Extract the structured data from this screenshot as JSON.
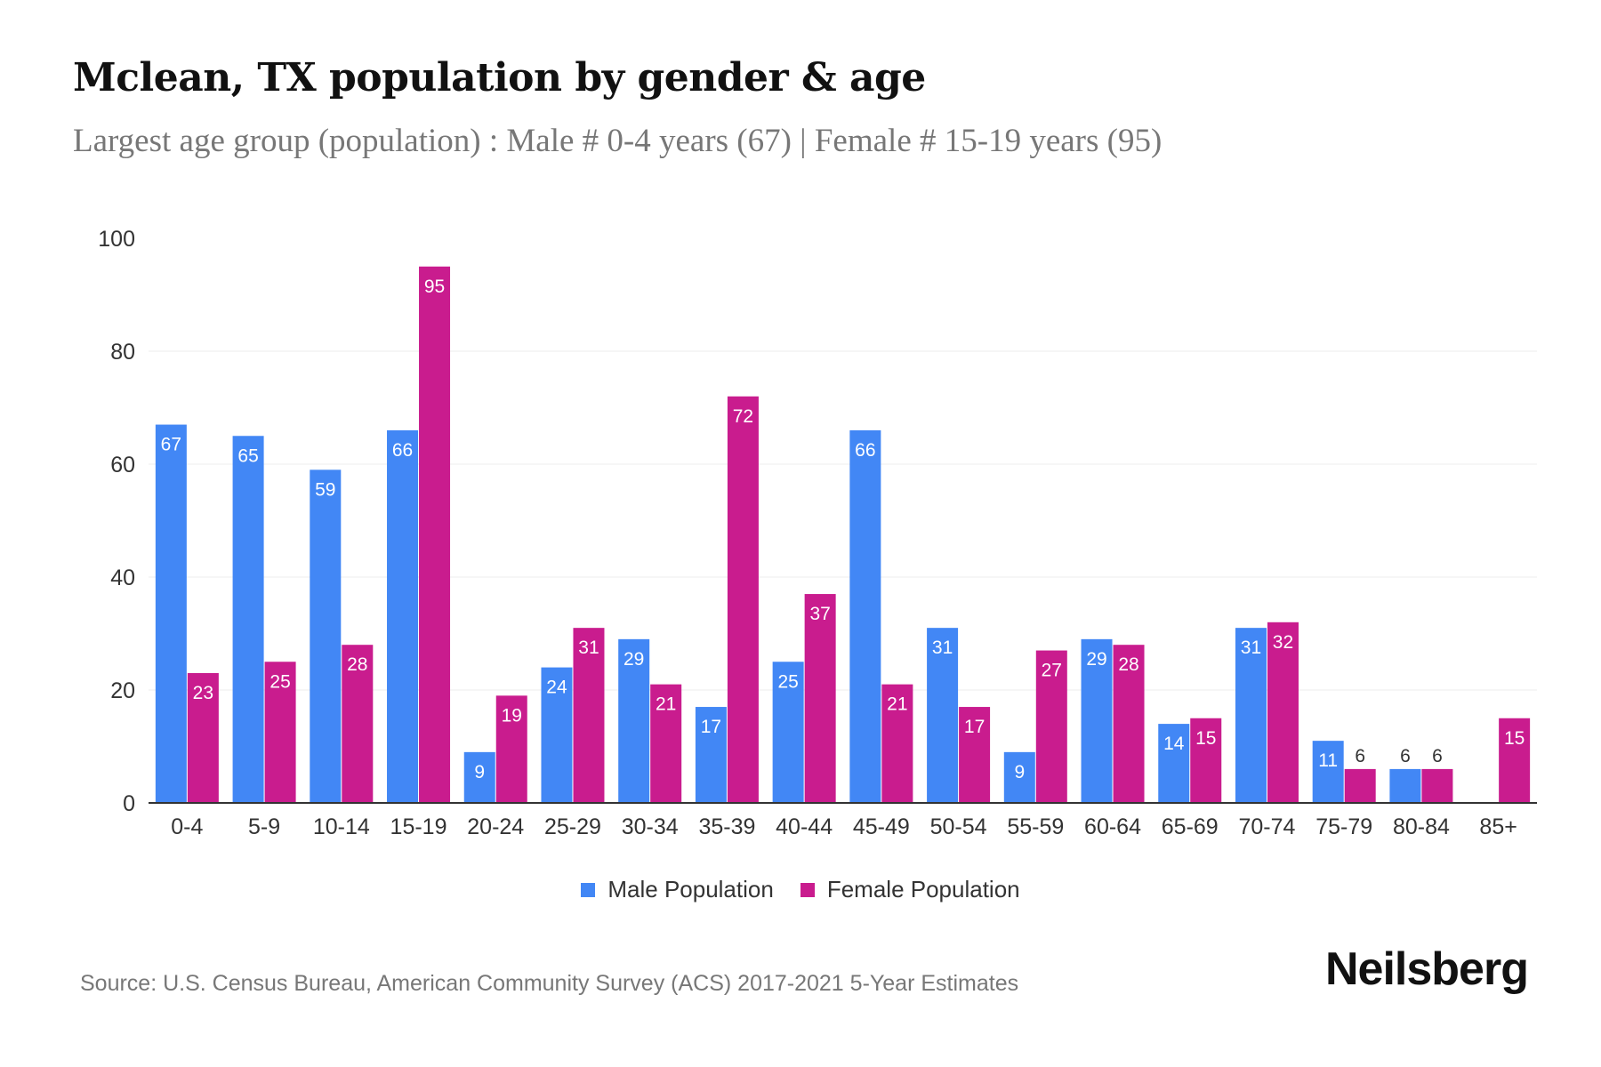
{
  "title": "Mclean, TX population by gender & age",
  "subtitle": "Largest age group (population) : Male # 0-4 years (67) | Female # 15-19 years (95)",
  "source": "Source: U.S. Census Bureau, American Community Survey (ACS) 2017-2021 5-Year Estimates",
  "logo": "Neilsberg",
  "chart_data": {
    "type": "bar",
    "categories": [
      "0-4",
      "5-9",
      "10-14",
      "15-19",
      "20-24",
      "25-29",
      "30-34",
      "35-39",
      "40-44",
      "45-49",
      "50-54",
      "55-59",
      "60-64",
      "65-69",
      "70-74",
      "75-79",
      "80-84",
      "85+"
    ],
    "series": [
      {
        "name": "Male Population",
        "color": "#4287f5",
        "values": [
          67,
          65,
          59,
          66,
          9,
          24,
          29,
          17,
          25,
          66,
          31,
          9,
          29,
          14,
          31,
          11,
          6,
          null
        ]
      },
      {
        "name": "Female Population",
        "color": "#c91c8e",
        "values": [
          23,
          25,
          28,
          95,
          19,
          31,
          21,
          72,
          37,
          21,
          17,
          27,
          28,
          15,
          32,
          6,
          6,
          15
        ]
      }
    ],
    "yticks": [
      0,
      20,
      40,
      60,
      80,
      100
    ],
    "ylim": [
      0,
      100
    ],
    "grid": true,
    "legend": "bottom"
  }
}
